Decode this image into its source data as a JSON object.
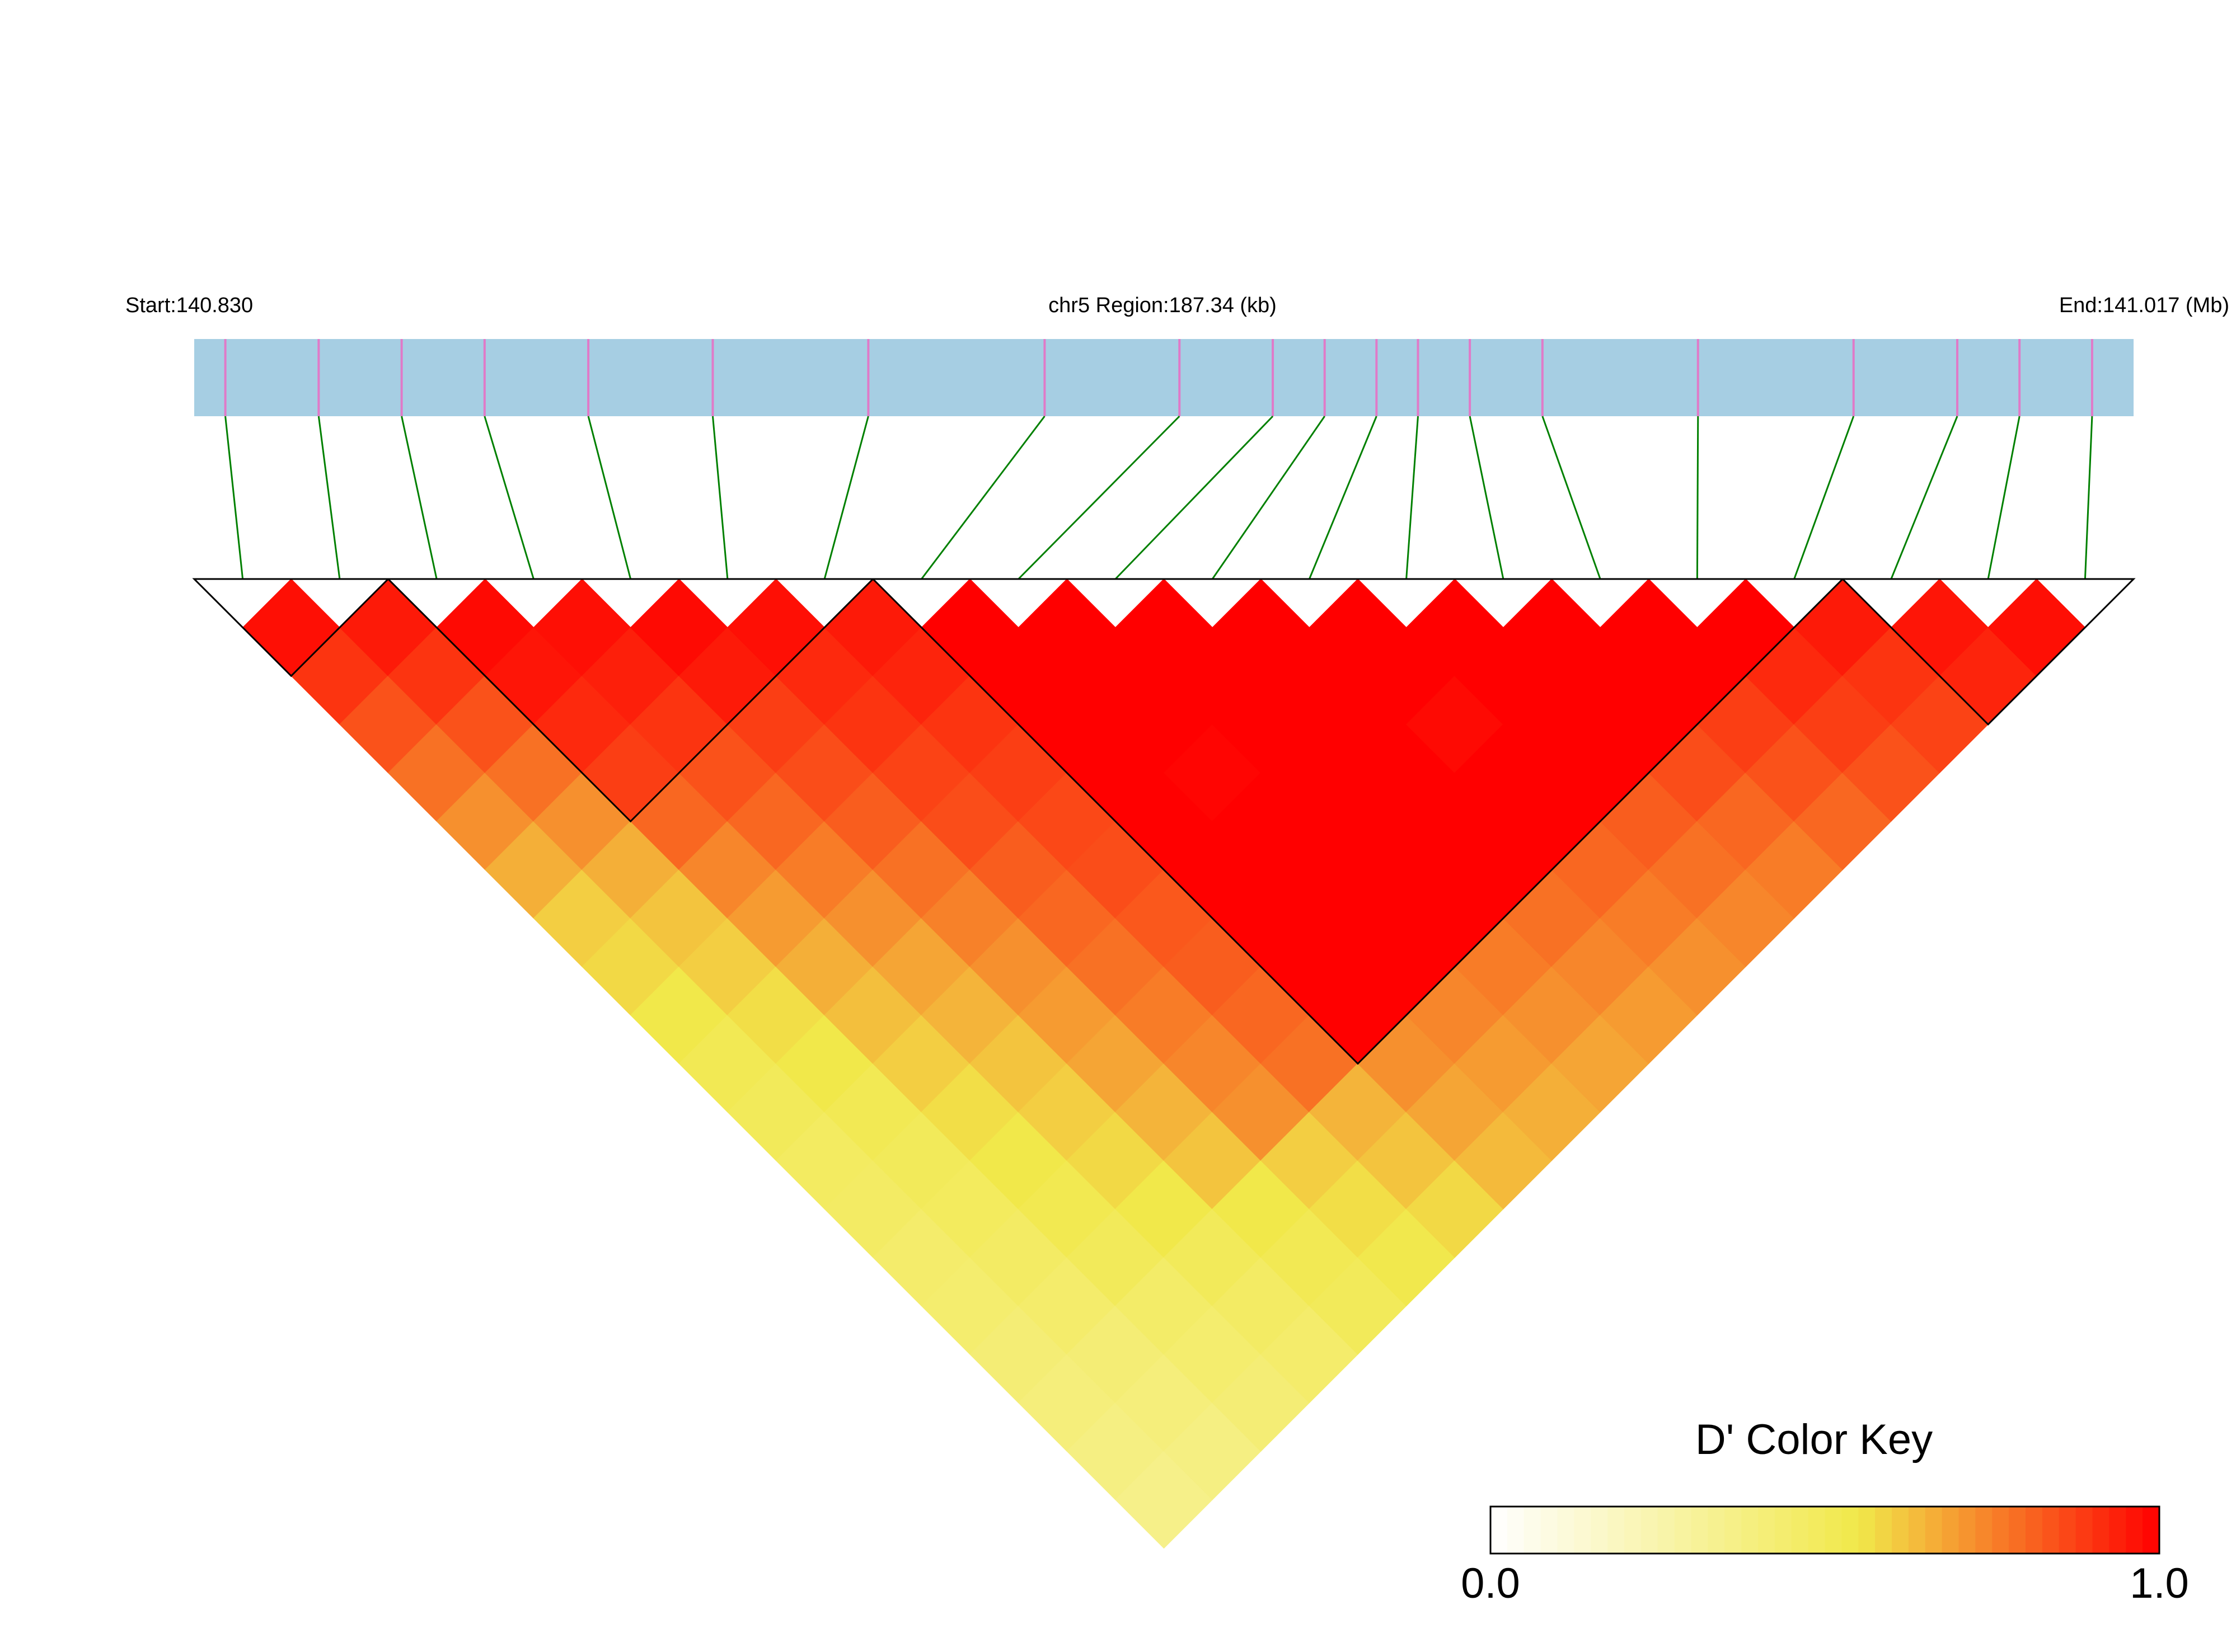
{
  "chart_data": {
    "type": "heatmap",
    "start_label": "Start:140.830",
    "title": "chr5 Region:187.34 (kb)",
    "end_label": "End:141.017 (Mb)",
    "key_title": "D' Color Key",
    "xlim": [
      140.83,
      141.017
    ],
    "markers": [
      140.833,
      140.842,
      140.85,
      140.858,
      140.868,
      140.88,
      140.895,
      140.912,
      140.925,
      140.934,
      140.939,
      140.944,
      140.948,
      140.953,
      140.96,
      140.975,
      140.99,
      141.0,
      141.006,
      141.013
    ],
    "dprime": [
      [
        0.97,
        0.9,
        0.84,
        0.78,
        0.72,
        0.66,
        0.6,
        0.58,
        0.55,
        0.52,
        0.5,
        0.48,
        0.47,
        0.45,
        0.44,
        0.42,
        0.4,
        0.38,
        0.36
      ],
      [
        0.95,
        0.9,
        0.84,
        0.78,
        0.72,
        0.66,
        0.62,
        0.6,
        0.57,
        0.55,
        0.52,
        0.5,
        0.49,
        0.47,
        0.45,
        0.42,
        0.4,
        0.38
      ],
      [
        0.98,
        0.96,
        0.92,
        0.88,
        0.8,
        0.74,
        0.7,
        0.66,
        0.63,
        0.6,
        0.57,
        0.55,
        0.53,
        0.5,
        0.46,
        0.44,
        0.42
      ],
      [
        0.97,
        0.94,
        0.9,
        0.84,
        0.8,
        0.76,
        0.72,
        0.68,
        0.65,
        0.62,
        0.6,
        0.58,
        0.55,
        0.5,
        0.47,
        0.45
      ],
      [
        0.98,
        0.95,
        0.88,
        0.85,
        0.82,
        0.78,
        0.75,
        0.72,
        0.7,
        0.68,
        0.65,
        0.62,
        0.55,
        0.52,
        0.5
      ],
      [
        0.97,
        0.92,
        0.9,
        0.87,
        0.85,
        0.82,
        0.8,
        0.78,
        0.76,
        0.74,
        0.72,
        0.6,
        0.57,
        0.54
      ],
      [
        0.95,
        0.93,
        0.9,
        0.88,
        0.86,
        0.85,
        0.83,
        0.82,
        0.8,
        0.78,
        0.65,
        0.62,
        0.58
      ],
      [
        1,
        1,
        1,
        1,
        1,
        1,
        1,
        1,
        1,
        0.72,
        0.68,
        0.64
      ],
      [
        1,
        1,
        1,
        0.99,
        1,
        1,
        1,
        1,
        0.74,
        0.7,
        0.66
      ],
      [
        1,
        1,
        1,
        1,
        1,
        1,
        1,
        0.76,
        0.72,
        0.68
      ],
      [
        1,
        1,
        1,
        1,
        1,
        1,
        0.78,
        0.74,
        0.7
      ],
      [
        1,
        1,
        0.98,
        1,
        1,
        0.8,
        0.76,
        0.72
      ],
      [
        1,
        1,
        1,
        1,
        0.82,
        0.78,
        0.74
      ],
      [
        1,
        1,
        1,
        0.85,
        0.8,
        0.76
      ],
      [
        1,
        1,
        0.88,
        0.84,
        0.8
      ],
      [
        1,
        0.92,
        0.88,
        0.84
      ],
      [
        0.95,
        0.9,
        0.87
      ],
      [
        0.96,
        0.93
      ],
      [
        0.97
      ]
    ],
    "blocks": [
      [
        0,
        1
      ],
      [
        2,
        6
      ],
      [
        7,
        16
      ],
      [
        17,
        19
      ]
    ],
    "colors": [
      "#ffffff",
      "#f1e84a",
      "#ff0000"
    ],
    "color_stops": [
      0,
      0.55,
      1
    ],
    "bar_color": "#a6cee3",
    "marker_color": "#e07ac8",
    "connector_color": "#008000",
    "key_lim": [
      0,
      1
    ],
    "key_ticks": [
      {
        "value": 0,
        "label": "0.0"
      },
      {
        "value": 1,
        "label": "1.0"
      }
    ]
  }
}
